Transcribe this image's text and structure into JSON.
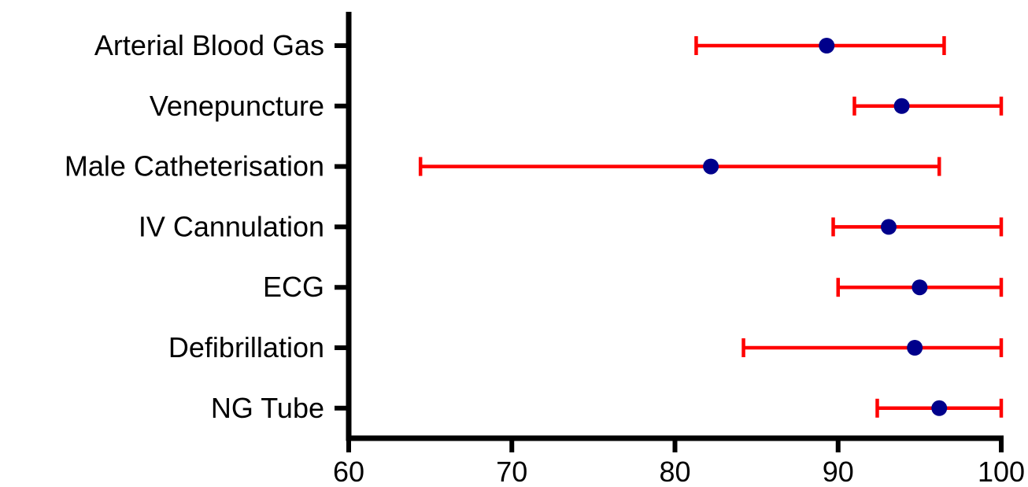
{
  "chart_data": {
    "type": "forest",
    "orientation": "horizontal",
    "title": "",
    "xlabel": "",
    "ylabel": "",
    "categories": [
      "Arterial Blood Gas",
      "Venepuncture",
      "Male Catheterisation",
      "IV Cannulation",
      "ECG",
      "Defibrillation",
      "NG Tube"
    ],
    "estimates": [
      89.3,
      93.9,
      82.2,
      93.1,
      95.0,
      94.7,
      96.2
    ],
    "lower": [
      81.3,
      91.0,
      64.4,
      89.7,
      90.0,
      84.2,
      92.4
    ],
    "upper": [
      96.5,
      100.0,
      96.2,
      100.0,
      100.0,
      100.0,
      100.0
    ],
    "xlim": [
      60,
      100
    ],
    "xticks": [
      "60",
      "70",
      "80",
      "90",
      "100"
    ],
    "grid": false,
    "legend": "none",
    "colors": {
      "point": "#00008b",
      "interval": "#ff0000",
      "axis": "#000000"
    }
  }
}
